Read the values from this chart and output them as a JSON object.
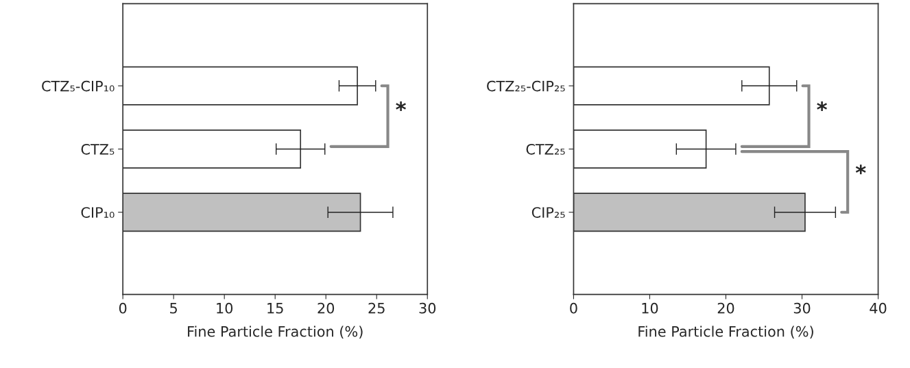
{
  "chart_data": [
    {
      "type": "bar",
      "orientation": "horizontal",
      "categories": [
        "CTZ₅-CIP₁₀",
        "CTZ₅",
        "CIP₁₀"
      ],
      "values": [
        23.1,
        17.5,
        23.4
      ],
      "errors": [
        1.8,
        2.4,
        3.2
      ],
      "colors": [
        "#ffffff",
        "#ffffff",
        "#c0c0c0"
      ],
      "xlabel": "Fine Particle Fraction (%)",
      "xlim": [
        0,
        30
      ],
      "xticks": [
        0,
        5,
        10,
        15,
        20,
        25,
        30
      ],
      "annotations": [
        "*"
      ],
      "grid": false,
      "legend": false
    },
    {
      "type": "bar",
      "orientation": "horizontal",
      "categories": [
        "CTZ₂₅-CIP₂₅",
        "CTZ₂₅",
        "CIP₂₅"
      ],
      "values": [
        25.7,
        17.4,
        30.4
      ],
      "errors": [
        3.6,
        3.9,
        4.0
      ],
      "colors": [
        "#ffffff",
        "#ffffff",
        "#c0c0c0"
      ],
      "xlabel": "Fine Particle Fraction (%)",
      "xlim": [
        0,
        40
      ],
      "xticks": [
        0,
        10,
        20,
        30,
        40
      ],
      "annotations": [
        "*",
        "*"
      ],
      "grid": false,
      "legend": false
    }
  ]
}
